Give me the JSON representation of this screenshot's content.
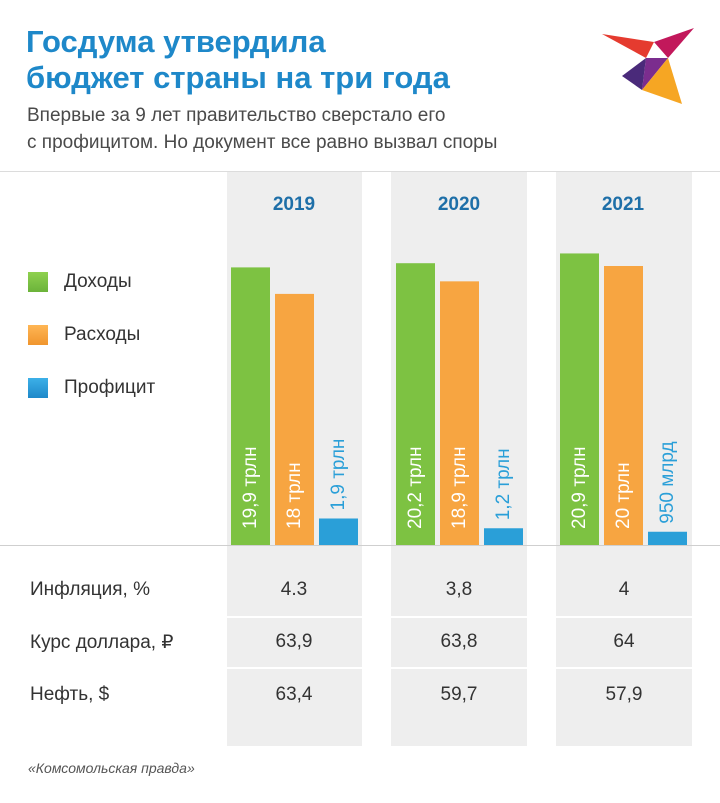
{
  "header": {
    "title": "Госдума утвердила\nбюджет страны на три года",
    "subtitle": "Впервые за 9 лет правительство сверстало его\nс профицитом. Но документ все равно вызвал споры"
  },
  "legend": [
    {
      "label": "Доходы",
      "color": "#7dc242"
    },
    {
      "label": "Расходы",
      "color": "#f7a541"
    },
    {
      "label": "Профицит",
      "color": "#2a9fd8"
    }
  ],
  "chart_data": {
    "type": "bar",
    "categories": [
      "2019",
      "2020",
      "2021"
    ],
    "series": [
      {
        "name": "Доходы",
        "color": "#7dc242",
        "values": [
          19.9,
          20.2,
          20.9
        ],
        "labels": [
          "19,9 трлн",
          "20,2 трлн",
          "20,9 трлн"
        ]
      },
      {
        "name": "Расходы",
        "color": "#f7a541",
        "values": [
          18,
          18.9,
          20
        ],
        "labels": [
          "18 трлн",
          "18,9 трлн",
          "20 трлн"
        ]
      },
      {
        "name": "Профицит",
        "color": "#2a9fd8",
        "values": [
          1.9,
          1.2,
          0.95
        ],
        "labels": [
          "1,9 трлн",
          "1,2 трлн",
          "950 млрд"
        ]
      }
    ],
    "unit": "трлн"
  },
  "table": {
    "rows": [
      {
        "label": "Инфляция, %",
        "values": [
          "4.3",
          "3,8",
          "4"
        ]
      },
      {
        "label": "Курс доллара, ₽",
        "values": [
          "63,9",
          "63,8",
          "64"
        ]
      },
      {
        "label": "Нефть, $",
        "values": [
          "63,4",
          "59,7",
          "57,9"
        ]
      }
    ]
  },
  "source": "«Комсомольская правда»",
  "colors": {
    "title": "#1e88c9",
    "year": "#1e6fa8",
    "column_bg": "#eeeeee"
  }
}
